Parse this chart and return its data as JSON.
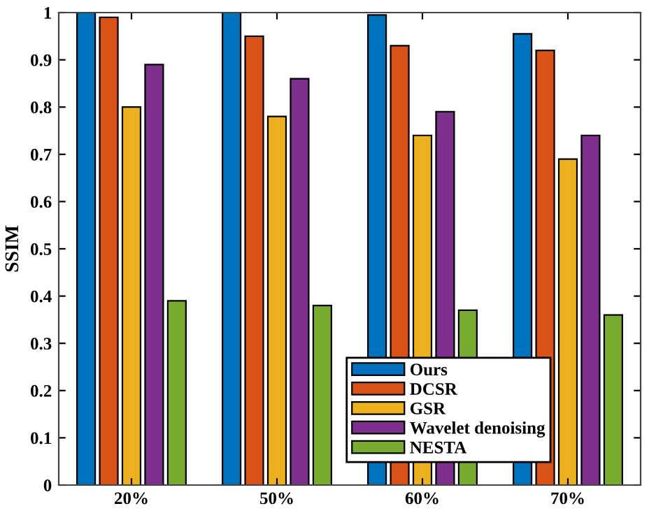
{
  "chart_data": {
    "type": "bar",
    "ylabel": "SSIM",
    "categories": [
      "20%",
      "50%",
      "60%",
      "70%"
    ],
    "series": [
      {
        "name": "Ours",
        "color": "#0072bd",
        "values": [
          1.0,
          1.0,
          0.995,
          0.955
        ]
      },
      {
        "name": "DCSR",
        "color": "#d95319",
        "values": [
          0.99,
          0.95,
          0.93,
          0.92
        ]
      },
      {
        "name": "GSR",
        "color": "#edb120",
        "values": [
          0.8,
          0.78,
          0.74,
          0.69
        ]
      },
      {
        "name": "Wavelet denoising",
        "color": "#7e2f8e",
        "values": [
          0.89,
          0.86,
          0.79,
          0.74
        ]
      },
      {
        "name": "NESTA",
        "color": "#77ac30",
        "values": [
          0.39,
          0.38,
          0.37,
          0.36
        ]
      }
    ],
    "ylim": [
      0,
      1
    ],
    "yticks": [
      0,
      0.1,
      0.2,
      0.3,
      0.4,
      0.5,
      0.6,
      0.7,
      0.8,
      0.9,
      1
    ],
    "legend": "bottom right",
    "grid": false
  }
}
